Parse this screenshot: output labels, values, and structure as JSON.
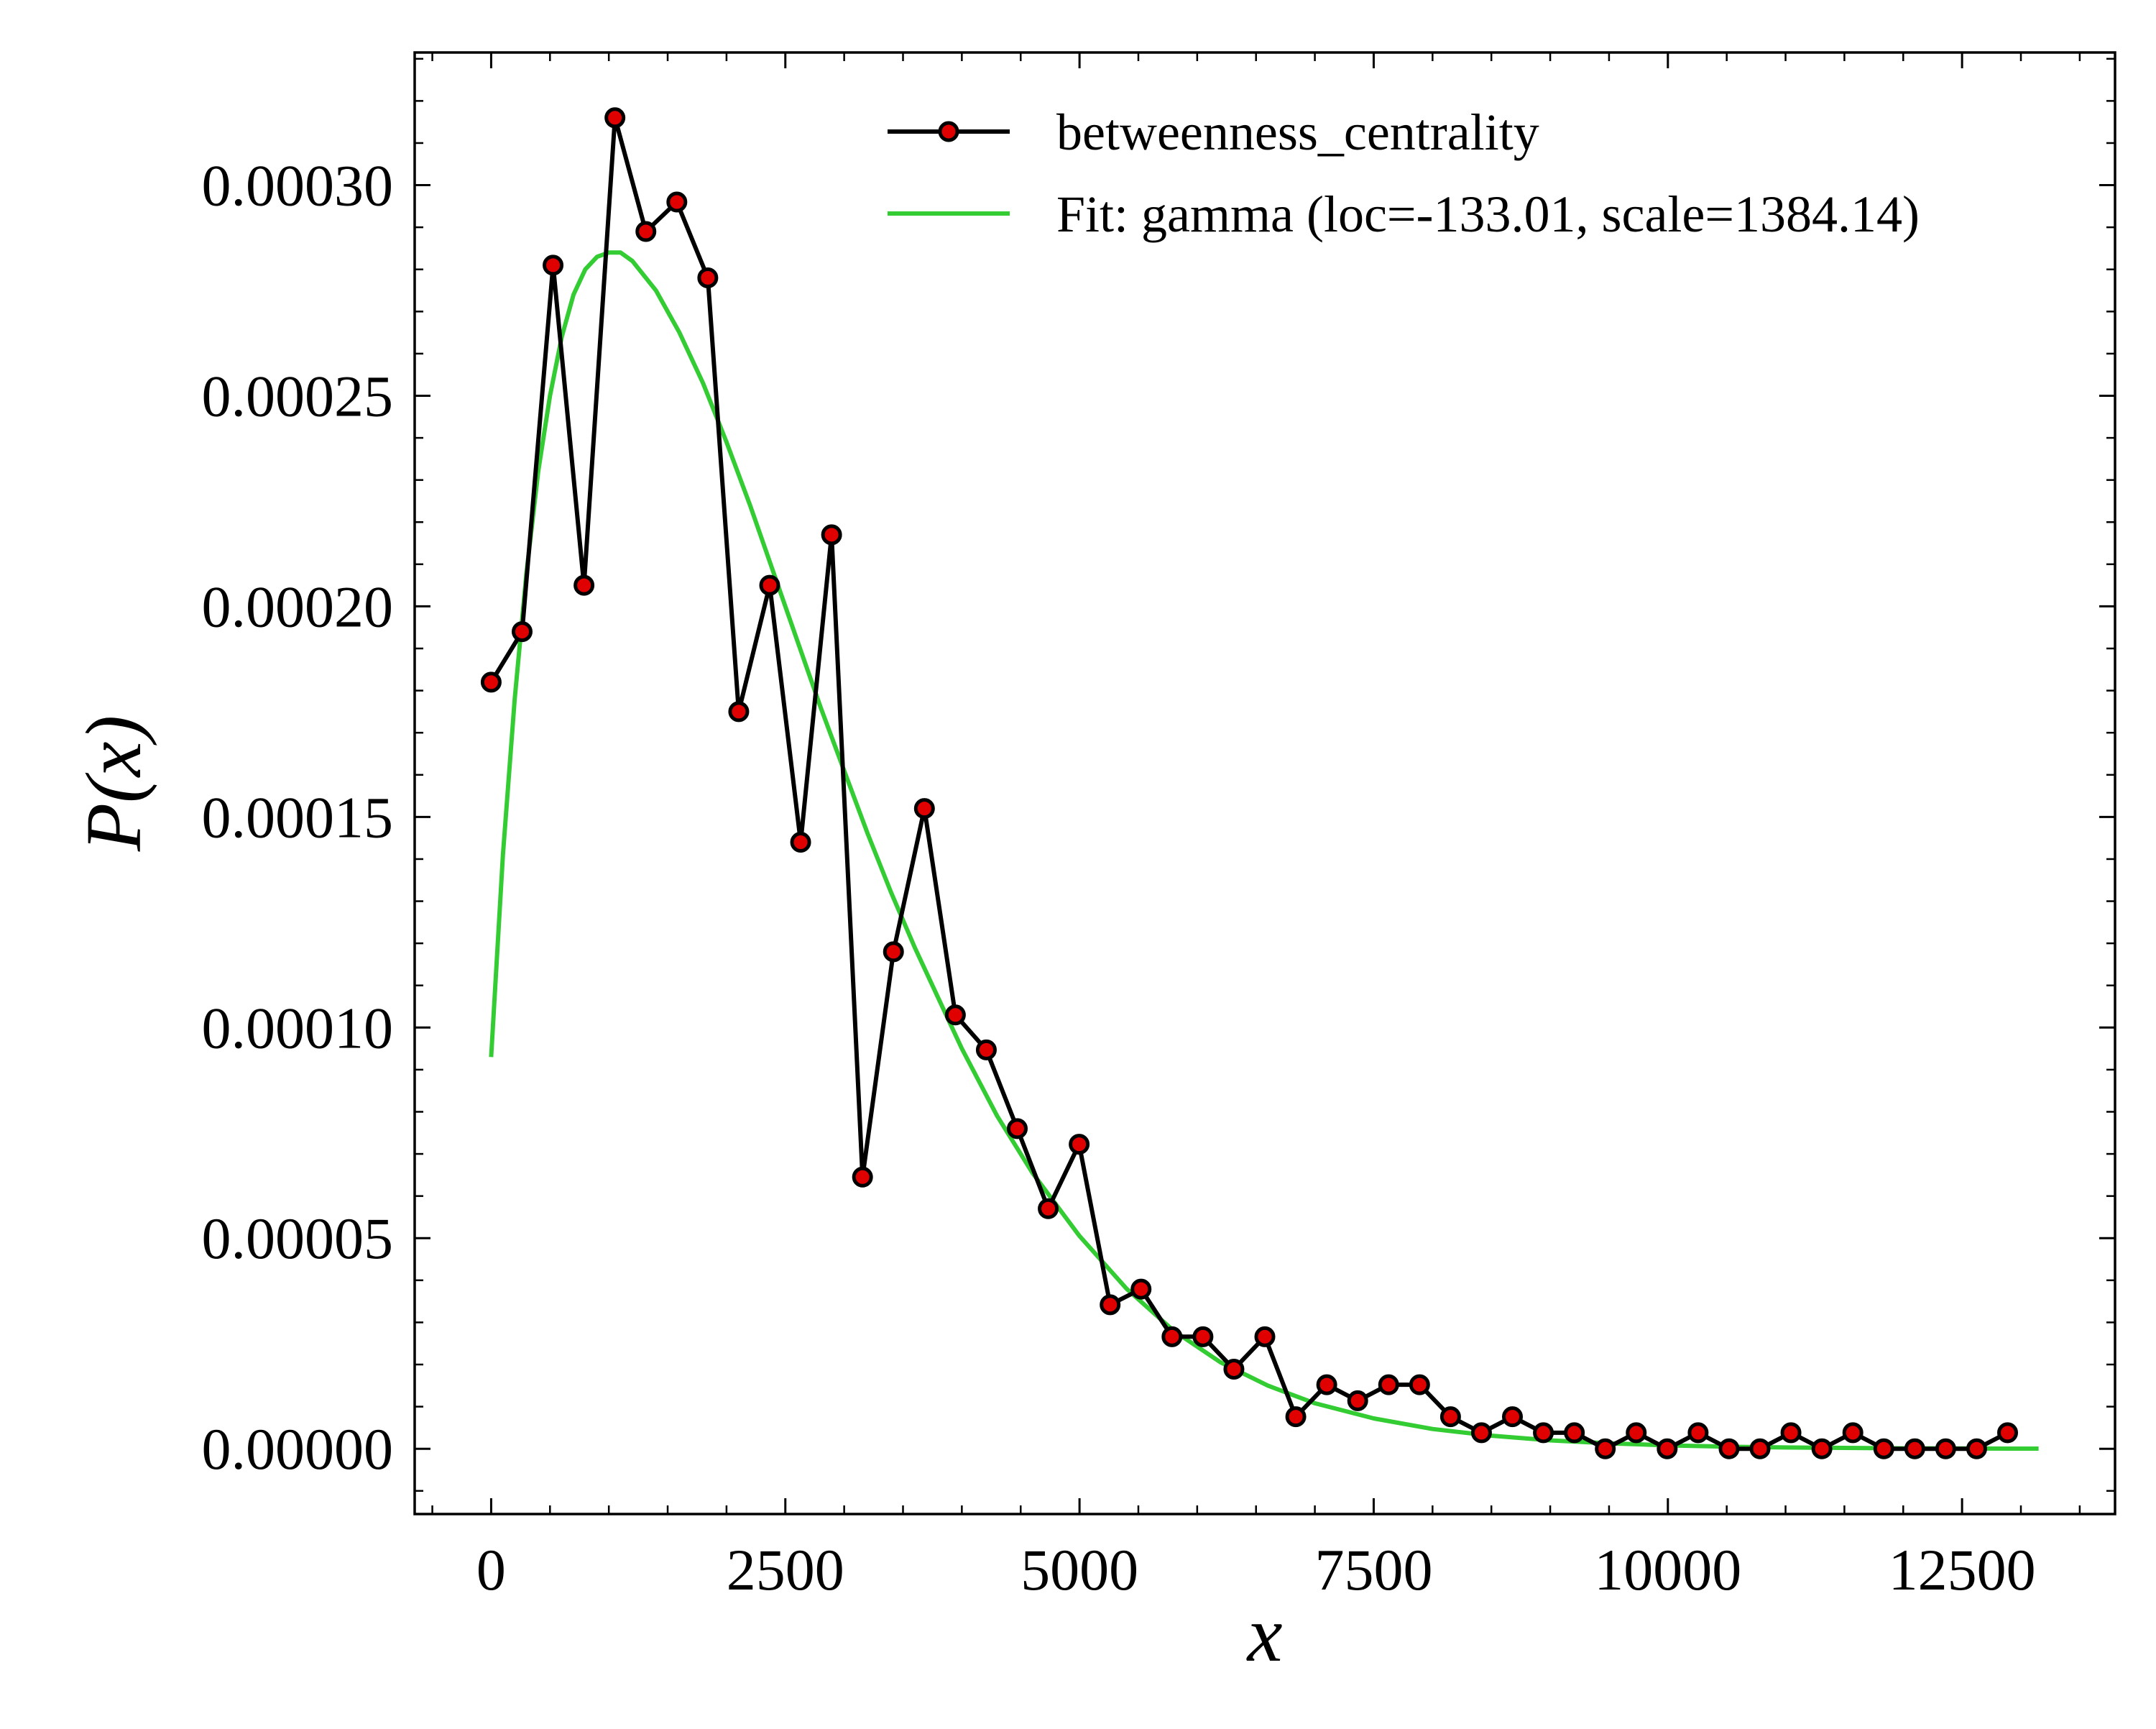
{
  "chart_data": {
    "type": "line",
    "xlabel": "x",
    "ylabel": "P(x)",
    "xlim": [
      -650,
      13800
    ],
    "ylim": [
      -1.55e-05,
      0.0003315
    ],
    "x_ticks": [
      0,
      2500,
      5000,
      7500,
      10000,
      12500
    ],
    "x_tick_labels": [
      "0",
      "2500",
      "5000",
      "7500",
      "10000",
      "12500"
    ],
    "y_ticks": [
      0.0,
      5e-05,
      0.0001,
      0.00015,
      0.0002,
      0.00025,
      0.0003
    ],
    "y_tick_labels": [
      "0.00000",
      "0.00005",
      "0.00010",
      "0.00015",
      "0.00020",
      "0.00025",
      "0.00030"
    ],
    "grid": false,
    "legend_position": "upper-right",
    "series": [
      {
        "name": "betweenness_centrality",
        "style": "line-with-markers",
        "color": "#000000",
        "marker_fill": "#e00000",
        "x": [
          0,
          263,
          526,
          789,
          1052,
          1315,
          1578,
          1841,
          2104,
          2367,
          2630,
          2893,
          3156,
          3419,
          3682,
          3945,
          4208,
          4471,
          4734,
          4997,
          5260,
          5523,
          5786,
          6049,
          6312,
          6575,
          6838,
          7101,
          7364,
          7627,
          7890,
          8153,
          8416,
          8679,
          8942,
          9205,
          9468,
          9731,
          9994,
          10257,
          10520,
          10783,
          11046,
          11309,
          11572,
          11835,
          12098,
          12361,
          12624,
          12887
        ],
        "y": [
          0.000182,
          0.000194,
          0.000281,
          0.000205,
          0.000316,
          0.000289,
          0.000296,
          0.000278,
          0.000175,
          0.000205,
          0.000144,
          0.000217,
          6.45e-05,
          0.000118,
          0.000152,
          0.000103,
          9.47e-05,
          7.6e-05,
          5.7e-05,
          7.23e-05,
          3.42e-05,
          3.79e-05,
          2.66e-05,
          2.66e-05,
          1.89e-05,
          2.66e-05,
          7.6e-06,
          1.52e-05,
          1.14e-05,
          1.52e-05,
          1.52e-05,
          7.6e-06,
          3.8e-06,
          7.6e-06,
          3.8e-06,
          3.8e-06,
          0.0,
          3.8e-06,
          0.0,
          3.8e-06,
          0.0,
          0.0,
          3.8e-06,
          0.0,
          3.8e-06,
          0.0,
          0.0,
          0.0,
          0.0,
          3.8e-06
        ]
      },
      {
        "name": "Fit: gamma (loc=-133.01, scale=1384.14)",
        "style": "line",
        "color": "#33cc33",
        "x": [
          0,
          100,
          200,
          300,
          400,
          500,
          600,
          700,
          800,
          900,
          1000,
          1100,
          1200,
          1400,
          1600,
          1800,
          2000,
          2200,
          2400,
          2600,
          2800,
          3000,
          3200,
          3400,
          3600,
          3800,
          4000,
          4300,
          4600,
          5000,
          5400,
          5800,
          6200,
          6600,
          7000,
          7500,
          8000,
          8500,
          9000,
          9500,
          10000,
          10500,
          11000,
          11500,
          12000,
          12500,
          13000,
          13150
        ],
        "y": [
          9.3e-05,
          0.000141,
          0.000178,
          0.000208,
          0.000232,
          0.00025,
          0.000264,
          0.000274,
          0.00028,
          0.000283,
          0.000284,
          0.000284,
          0.000282,
          0.000275,
          0.000265,
          0.000253,
          0.000239,
          0.000224,
          0.000208,
          0.000192,
          0.000176,
          0.000161,
          0.000146,
          0.000132,
          0.000119,
          0.000107,
          9.5e-05,
          7.9e-05,
          6.55e-05,
          5.05e-05,
          3.8e-05,
          2.8e-05,
          2.05e-05,
          1.5e-05,
          1.08e-05,
          7.2e-06,
          4.7e-06,
          3.1e-06,
          2e-06,
          1.3e-06,
          8e-07,
          5e-07,
          3e-07,
          2e-07,
          1e-07,
          6e-08,
          4e-08,
          3e-08
        ]
      }
    ]
  }
}
